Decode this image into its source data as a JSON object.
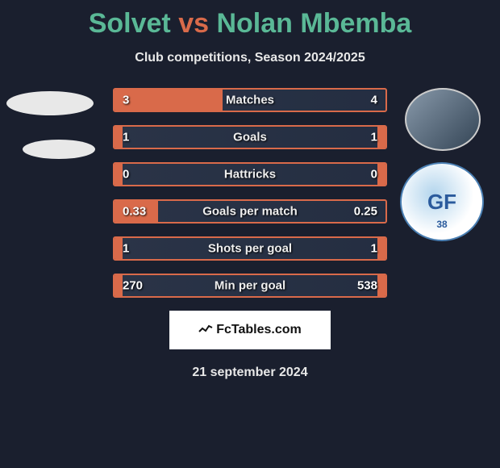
{
  "title": {
    "p1": "Solvet",
    "vs": "vs",
    "p2": "Nolan Mbemba"
  },
  "subtitle": "Club competitions, Season 2024/2025",
  "bars": [
    {
      "label": "Matches",
      "l": "3",
      "r": "4",
      "lw": 40,
      "rw": 0
    },
    {
      "label": "Goals",
      "l": "1",
      "r": "1",
      "lw": 3,
      "rw": 3
    },
    {
      "label": "Hattricks",
      "l": "0",
      "r": "0",
      "lw": 3,
      "rw": 3
    },
    {
      "label": "Goals per match",
      "l": "0.33",
      "r": "0.25",
      "lw": 16,
      "rw": 0
    },
    {
      "label": "Shots per goal",
      "l": "1",
      "r": "1",
      "lw": 3,
      "rw": 3
    },
    {
      "label": "Min per goal",
      "l": "270",
      "r": "538",
      "lw": 3,
      "rw": 3
    }
  ],
  "colors": {
    "background": "#1a1f2e",
    "accent_green": "#5ab896",
    "accent_orange": "#d96a4a",
    "text": "#e8e8e8",
    "badge_bg": "#ffffff",
    "club_blue": "#2a5a9c"
  },
  "badge": {
    "text": "FcTables.com"
  },
  "club_badge": {
    "initials": "GF",
    "number": "38"
  },
  "date": "21 september 2024"
}
